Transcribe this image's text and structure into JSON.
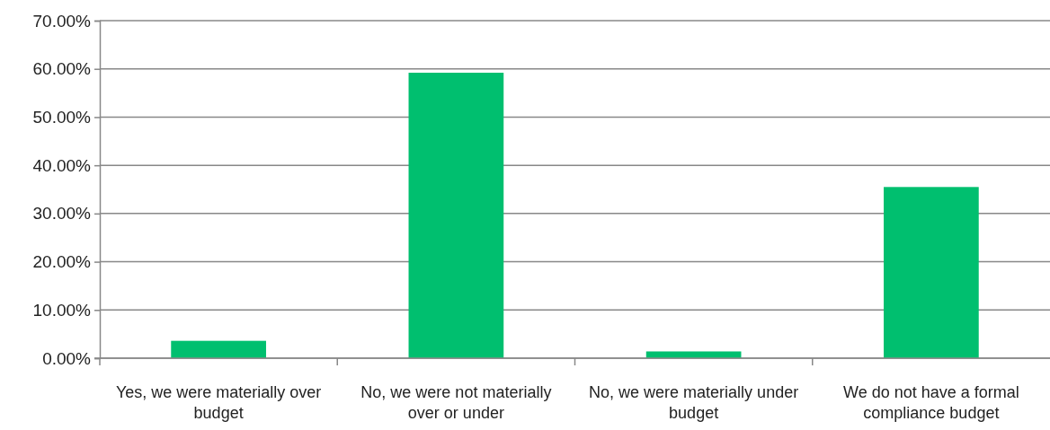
{
  "chart_data": {
    "type": "bar",
    "categories": [
      "Yes, we were materially over budget",
      "No, we were not materially over or under",
      "No, we were materially under budget",
      "We do not have a formal compliance budget"
    ],
    "values": [
      3.6,
      59.2,
      1.4,
      35.5
    ],
    "color": "#00bf6f",
    "ylim": [
      0,
      70
    ],
    "yticks": [
      {
        "value": 0,
        "label": "0.00%"
      },
      {
        "value": 10,
        "label": "10.00%"
      },
      {
        "value": 20,
        "label": "20.00%"
      },
      {
        "value": 30,
        "label": "30.00%"
      },
      {
        "value": 40,
        "label": "40.00%"
      },
      {
        "value": 50,
        "label": "50.00%"
      },
      {
        "value": 60,
        "label": "60.00%"
      },
      {
        "value": 70,
        "label": "70.00%"
      }
    ],
    "grid": "y"
  }
}
